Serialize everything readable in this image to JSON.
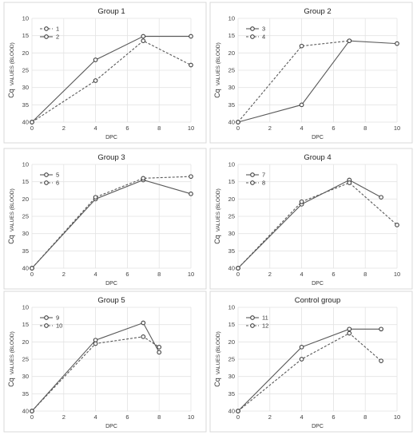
{
  "chart_data": [
    {
      "type": "line",
      "title": "Group 1",
      "xlabel": "DPC",
      "ylabel_main": "Cq",
      "ylabel_sub": "VALUES (BLOOD)",
      "xlim": [
        0,
        10
      ],
      "ylim": [
        10,
        40
      ],
      "y_inverted": true,
      "xticks": [
        0,
        2,
        4,
        6,
        8,
        10
      ],
      "yticks": [
        10,
        15,
        20,
        25,
        30,
        35,
        40
      ],
      "legend": "top-left",
      "grid": true,
      "series": [
        {
          "name": "1",
          "style": "dashed",
          "points": [
            [
              0,
              40
            ],
            [
              4,
              28
            ],
            [
              7,
              16.5
            ],
            [
              10,
              23.5
            ]
          ]
        },
        {
          "name": "2",
          "style": "solid",
          "points": [
            [
              0,
              40
            ],
            [
              4,
              22
            ],
            [
              7,
              15.2
            ],
            [
              10,
              15.2
            ]
          ]
        }
      ]
    },
    {
      "type": "line",
      "title": "Group 2",
      "xlabel": "DPC",
      "ylabel_main": "Cq",
      "ylabel_sub": "VALUES (BLOOD)",
      "xlim": [
        0,
        10
      ],
      "ylim": [
        10,
        40
      ],
      "y_inverted": true,
      "xticks": [
        0,
        2,
        4,
        6,
        8,
        10
      ],
      "yticks": [
        10,
        15,
        20,
        25,
        30,
        35,
        40
      ],
      "legend": "top-left",
      "grid": true,
      "series": [
        {
          "name": "3",
          "style": "solid",
          "points": [
            [
              0,
              40
            ],
            [
              4,
              35
            ],
            [
              7,
              16.5
            ],
            [
              10,
              17.3
            ]
          ]
        },
        {
          "name": "4",
          "style": "dashed",
          "points": [
            [
              0,
              40
            ],
            [
              4,
              18
            ],
            [
              7,
              16.5
            ]
          ]
        }
      ]
    },
    {
      "type": "line",
      "title": "Group 3",
      "xlabel": "DPC",
      "ylabel_main": "Cq",
      "ylabel_sub": "VALUES (BLOOD)",
      "xlim": [
        0,
        10
      ],
      "ylim": [
        10,
        40
      ],
      "y_inverted": true,
      "xticks": [
        0,
        2,
        4,
        6,
        8,
        10
      ],
      "yticks": [
        10,
        15,
        20,
        25,
        30,
        35,
        40
      ],
      "legend": "top-left",
      "grid": true,
      "series": [
        {
          "name": "5",
          "style": "solid",
          "points": [
            [
              0,
              40
            ],
            [
              4,
              20
            ],
            [
              7,
              14.5
            ],
            [
              10,
              18.5
            ]
          ]
        },
        {
          "name": "6",
          "style": "dashed",
          "points": [
            [
              0,
              40
            ],
            [
              4,
              19.5
            ],
            [
              7,
              14
            ],
            [
              10,
              13.5
            ]
          ]
        }
      ]
    },
    {
      "type": "line",
      "title": "Group 4",
      "xlabel": "DPC",
      "ylabel_main": "Cq",
      "ylabel_sub": "VALUES (BLOOD)",
      "xlim": [
        0,
        10
      ],
      "ylim": [
        10,
        40
      ],
      "y_inverted": true,
      "xticks": [
        0,
        2,
        4,
        6,
        8,
        10
      ],
      "yticks": [
        10,
        15,
        20,
        25,
        30,
        35,
        40
      ],
      "legend": "top-left",
      "grid": true,
      "series": [
        {
          "name": "7",
          "style": "solid",
          "points": [
            [
              0,
              40
            ],
            [
              4,
              21.5
            ],
            [
              7,
              14.5
            ],
            [
              9,
              19.5
            ]
          ]
        },
        {
          "name": "8",
          "style": "dashed",
          "points": [
            [
              0,
              40
            ],
            [
              4,
              20.8
            ],
            [
              7,
              15.3
            ],
            [
              10,
              27.5
            ]
          ]
        }
      ]
    },
    {
      "type": "line",
      "title": "Group 5",
      "xlabel": "DPC",
      "ylabel_main": "Cq",
      "ylabel_sub": "VALUES (BLOOD)",
      "xlim": [
        0,
        10
      ],
      "ylim": [
        10,
        40
      ],
      "y_inverted": true,
      "xticks": [
        0,
        2,
        4,
        6,
        8,
        10
      ],
      "yticks": [
        10,
        15,
        20,
        25,
        30,
        35,
        40
      ],
      "legend": "top-left",
      "grid": true,
      "series": [
        {
          "name": "9",
          "style": "solid",
          "points": [
            [
              0,
              40
            ],
            [
              4,
              19.5
            ],
            [
              7,
              14.5
            ],
            [
              8,
              23
            ]
          ]
        },
        {
          "name": "10",
          "style": "dashed",
          "points": [
            [
              0,
              40
            ],
            [
              4,
              20.5
            ],
            [
              7,
              18.5
            ],
            [
              8,
              21.5
            ]
          ]
        }
      ]
    },
    {
      "type": "line",
      "title": "Control group",
      "xlabel": "DPC",
      "ylabel_main": "Cq",
      "ylabel_sub": "VALUES (BLOOD)",
      "xlim": [
        0,
        10
      ],
      "ylim": [
        10,
        40
      ],
      "y_inverted": true,
      "xticks": [
        0,
        2,
        4,
        6,
        8,
        10
      ],
      "yticks": [
        10,
        15,
        20,
        25,
        30,
        35,
        40
      ],
      "legend": "top-left",
      "grid": true,
      "series": [
        {
          "name": "11",
          "style": "solid",
          "points": [
            [
              0,
              40
            ],
            [
              4,
              21.5
            ],
            [
              7,
              16.3
            ],
            [
              9,
              16.3
            ]
          ]
        },
        {
          "name": "12",
          "style": "dashed",
          "points": [
            [
              0,
              40
            ],
            [
              4,
              25
            ],
            [
              7,
              17.5
            ],
            [
              9,
              25.5
            ]
          ]
        }
      ]
    }
  ]
}
